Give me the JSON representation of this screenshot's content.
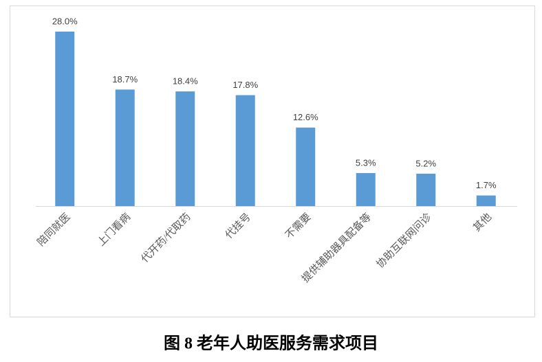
{
  "chart_data": {
    "type": "bar",
    "title": "图 8 老年人助医服务需求项目",
    "categories": [
      "陪同就医",
      "上门看病",
      "代开药/代取药",
      "代挂号",
      "不需要",
      "提供辅助器具配备等",
      "协助互联网问诊",
      "其他"
    ],
    "values": [
      28.0,
      18.7,
      18.4,
      17.8,
      12.6,
      5.3,
      5.2,
      1.7
    ],
    "value_labels": [
      "28.0%",
      "18.7%",
      "18.4%",
      "17.8%",
      "12.6%",
      "5.3%",
      "5.2%",
      "1.7%"
    ],
    "color": "#5b9bd5"
  }
}
